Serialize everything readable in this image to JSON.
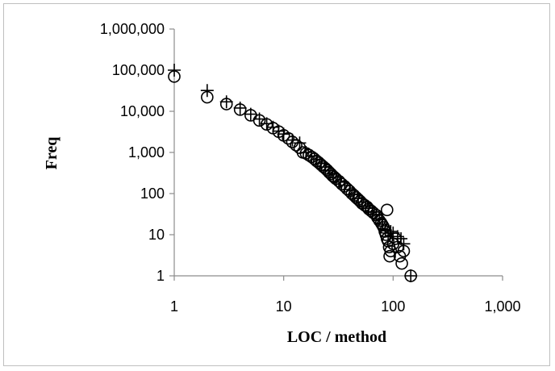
{
  "chart_data": {
    "type": "scatter",
    "title": "",
    "xlabel": "LOC / method",
    "ylabel": "Freq",
    "x_scale": "log",
    "y_scale": "log",
    "xlim": [
      1,
      1000
    ],
    "ylim": [
      1,
      1000000
    ],
    "x_tick_labels": [
      "1",
      "10",
      "100",
      "1,000"
    ],
    "y_tick_labels": [
      "1",
      "10",
      "100",
      "1,000",
      "10,000",
      "100,000",
      "1,000,000"
    ],
    "grid": false,
    "legend": "none",
    "series": [
      {
        "marker": "circle",
        "points": [
          [
            1,
            70000
          ],
          [
            2,
            22000
          ],
          [
            3,
            15000
          ],
          [
            4,
            11000
          ],
          [
            5,
            8000
          ],
          [
            6,
            6000
          ],
          [
            7,
            4800
          ],
          [
            8,
            3900
          ],
          [
            9,
            3200
          ],
          [
            10,
            2600
          ],
          [
            11,
            2200
          ],
          [
            12,
            1800
          ],
          [
            13,
            1500
          ],
          [
            14,
            1300
          ],
          [
            15,
            1000
          ],
          [
            16,
            950
          ],
          [
            17,
            860
          ],
          [
            18,
            780
          ],
          [
            19,
            700
          ],
          [
            20,
            620
          ],
          [
            21,
            560
          ],
          [
            22,
            500
          ],
          [
            23,
            450
          ],
          [
            24,
            410
          ],
          [
            25,
            370
          ],
          [
            26,
            330
          ],
          [
            27,
            300
          ],
          [
            28,
            270
          ],
          [
            29,
            250
          ],
          [
            30,
            230
          ],
          [
            32,
            200
          ],
          [
            34,
            170
          ],
          [
            36,
            150
          ],
          [
            38,
            130
          ],
          [
            40,
            115
          ],
          [
            42,
            100
          ],
          [
            44,
            90
          ],
          [
            46,
            80
          ],
          [
            48,
            72
          ],
          [
            50,
            65
          ],
          [
            52,
            58
          ],
          [
            55,
            52
          ],
          [
            58,
            47
          ],
          [
            60,
            42
          ],
          [
            63,
            38
          ],
          [
            66,
            34
          ],
          [
            70,
            30
          ],
          [
            72,
            26
          ],
          [
            75,
            22
          ],
          [
            78,
            19
          ],
          [
            80,
            17
          ],
          [
            82,
            15
          ],
          [
            84,
            12
          ],
          [
            86,
            10
          ],
          [
            88,
            8
          ],
          [
            90,
            7
          ],
          [
            92,
            5
          ],
          [
            95,
            4
          ],
          [
            100,
            6
          ],
          [
            105,
            8
          ],
          [
            110,
            5
          ],
          [
            115,
            3
          ],
          [
            120,
            2
          ],
          [
            125,
            4
          ],
          [
            145,
            1
          ],
          [
            88,
            40
          ],
          [
            93,
            3
          ]
        ]
      },
      {
        "marker": "plus",
        "points": [
          [
            1,
            100000
          ],
          [
            2,
            32000
          ],
          [
            3,
            17000
          ],
          [
            4,
            12000
          ],
          [
            5,
            8500
          ],
          [
            6,
            6500
          ],
          [
            7,
            5000
          ],
          [
            8,
            4100
          ],
          [
            9,
            3300
          ],
          [
            10,
            2800
          ],
          [
            12,
            2000
          ],
          [
            14,
            1700
          ],
          [
            16,
            1000
          ],
          [
            18,
            820
          ],
          [
            20,
            680
          ],
          [
            22,
            540
          ],
          [
            24,
            440
          ],
          [
            26,
            360
          ],
          [
            28,
            300
          ],
          [
            30,
            250
          ],
          [
            33,
            190
          ],
          [
            36,
            160
          ],
          [
            40,
            125
          ],
          [
            44,
            95
          ],
          [
            48,
            76
          ],
          [
            52,
            62
          ],
          [
            56,
            50
          ],
          [
            60,
            44
          ],
          [
            65,
            36
          ],
          [
            70,
            31
          ],
          [
            75,
            24
          ],
          [
            80,
            18
          ],
          [
            85,
            13
          ],
          [
            90,
            9
          ],
          [
            95,
            12
          ],
          [
            100,
            11
          ],
          [
            110,
            9
          ],
          [
            118,
            8
          ],
          [
            125,
            6
          ],
          [
            145,
            1
          ]
        ]
      }
    ]
  }
}
